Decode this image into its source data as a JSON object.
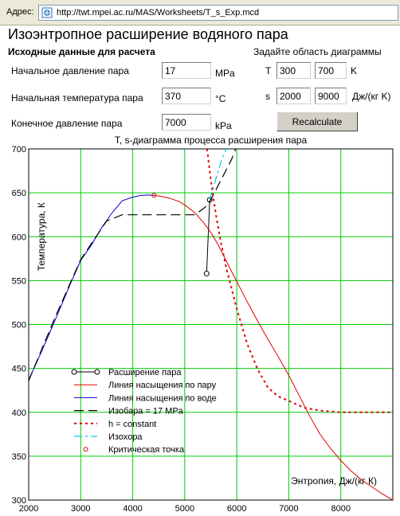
{
  "address_bar": {
    "label": "Адрес:",
    "url": "http://twt.mpei.ac.ru/MAS/Worksheets/T_s_Exp.mcd"
  },
  "page": {
    "title": "Изоэнтропное расширение водяного пара",
    "inputs_heading": "Исходные данные для расчета",
    "area_heading": "Задайте область диаграммы"
  },
  "fields": {
    "initial_pressure": {
      "label": "Начальное давление пара",
      "value": "17",
      "unit": "MPa"
    },
    "initial_temperature": {
      "label": "Начальная температура пара",
      "value": "370",
      "unit": "°C"
    },
    "final_pressure": {
      "label": "Конечное давление пара",
      "value": "7000",
      "unit": "kPa"
    }
  },
  "range": {
    "t_label": "T",
    "t_min": "300",
    "t_max": "700",
    "t_unit": "K",
    "s_label": "s",
    "s_min": "2000",
    "s_max": "9000",
    "s_unit": "Дж/(кг K)"
  },
  "buttons": {
    "recalculate": "Recalculate"
  },
  "colors": {
    "grid": "#00cc00",
    "steam": "#e00000",
    "water": "#0000cc",
    "isochore": "#00cccc",
    "expansion": "#000000"
  },
  "chart_data": {
    "type": "line",
    "title": "T, s-диаграмма процесса расширения пара",
    "xlabel": "Энтропия, Дж/(кг К)",
    "ylabel": "Температура, К",
    "xlim": [
      2000,
      9000
    ],
    "ylim": [
      300,
      700
    ],
    "x_ticks": [
      2000,
      3000,
      4000,
      5000,
      6000,
      7000,
      8000
    ],
    "y_ticks": [
      300,
      350,
      400,
      450,
      500,
      550,
      600,
      650,
      700
    ],
    "grid": true,
    "legend_position": "bottom-left",
    "series": [
      {
        "name": "Расширение пара",
        "style": "black-line-circle-markers",
        "x": [
          5480,
          5420
        ],
        "y": [
          642,
          558
        ]
      },
      {
        "name": "Линия насыщения по пару",
        "style": "red-solid",
        "x": [
          4410,
          4500,
          4700,
          4900,
          5050,
          5200,
          5350,
          5500,
          5650,
          5800,
          6000,
          6200,
          6400,
          6600,
          6800,
          7000,
          7200,
          7400,
          7600,
          7800,
          8000,
          8200,
          8400,
          8600,
          8800,
          9000
        ],
        "y": [
          647,
          646.5,
          644,
          640,
          634,
          627,
          617,
          605,
          590,
          572,
          549,
          526,
          504,
          483,
          463,
          442,
          419,
          396,
          375,
          359,
          345,
          333,
          323,
          315,
          307,
          300
        ]
      },
      {
        "name": "Линия насыщения по воде",
        "style": "blue-solid",
        "x": [
          2000,
          2200,
          2400,
          2600,
          2800,
          3000,
          3200,
          3400,
          3600,
          3800,
          4000,
          4150,
          4300,
          4410
        ],
        "y": [
          437,
          463,
          490,
          518,
          546,
          573,
          590,
          610,
          627,
          641,
          645,
          647,
          647.5,
          647
        ]
      },
      {
        "name": "Изобара  = 17 MPa",
        "style": "black-dashed",
        "x": [
          2000,
          2500,
          3000,
          3500,
          3800,
          3850,
          4500,
          5200,
          5400,
          5500,
          5700,
          5900,
          5980
        ],
        "y": [
          436,
          507,
          574,
          618,
          625,
          625,
          625,
          625,
          634,
          642,
          665,
          688,
          700
        ]
      },
      {
        "name": "h = constant",
        "style": "red-dotted",
        "x": [
          5430,
          5500,
          5600,
          5700,
          5800,
          6000,
          6200,
          6400,
          6600,
          6800,
          7000,
          7300,
          7600,
          8000,
          8500,
          9000
        ],
        "y": [
          700,
          665,
          625,
          592,
          564,
          518,
          478,
          449,
          428,
          418,
          413,
          405,
          402,
          400,
          400,
          400
        ]
      },
      {
        "name": "Изохора",
        "style": "cyan-dashdot",
        "x": [
          5480,
          5550,
          5650,
          5720,
          5800
        ],
        "y": [
          642,
          656,
          676,
          690,
          700
        ]
      },
      {
        "name": "Критическая точка",
        "style": "red-open-circle",
        "x": [
          4410
        ],
        "y": [
          647
        ]
      }
    ]
  }
}
